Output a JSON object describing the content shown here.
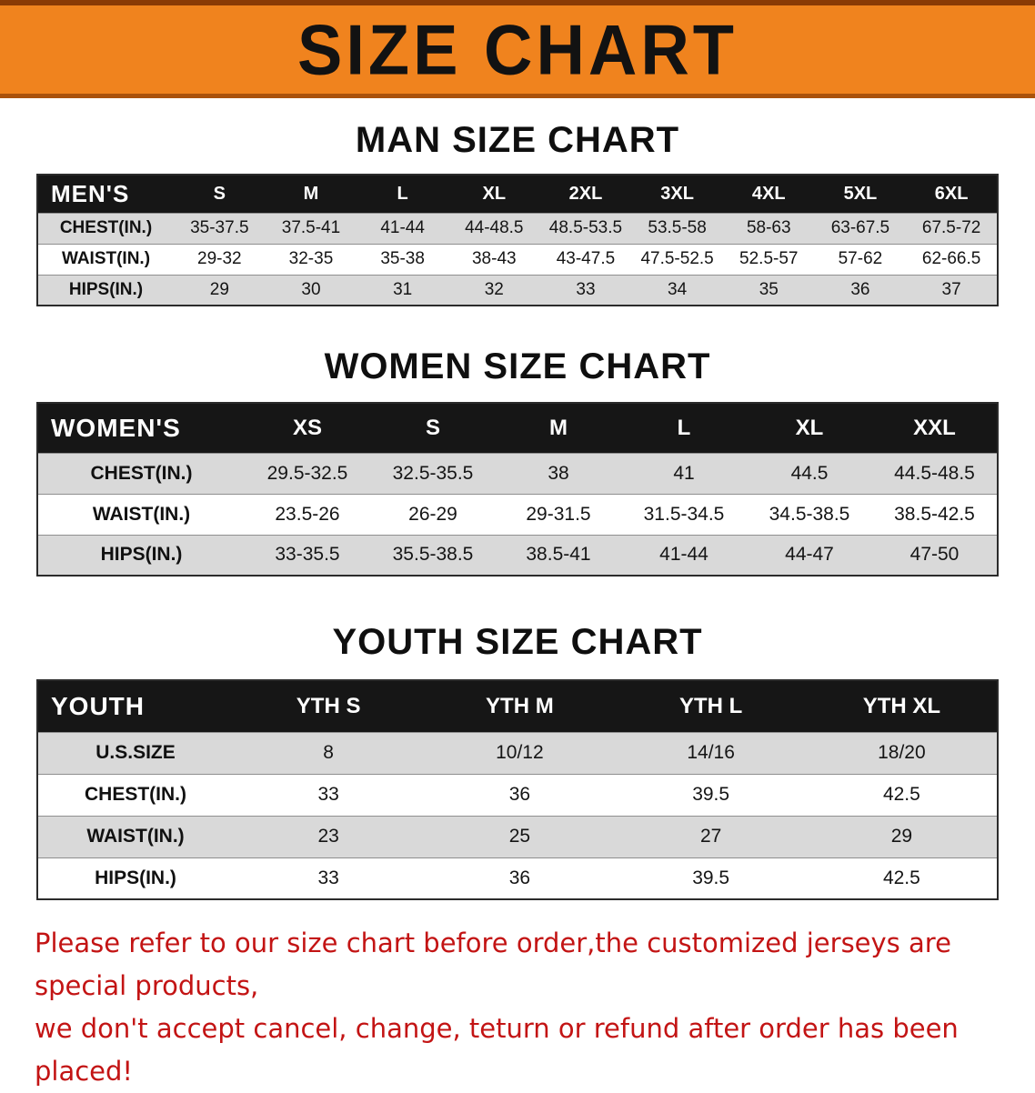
{
  "banner": {
    "title": "SIZE CHART"
  },
  "colors": {
    "banner_bg": "#f0831e",
    "banner_border_top": "#8a3a05",
    "table_header_bg": "#161616",
    "row_alt_bg": "#d9d9d9",
    "footer_text": "#c31414"
  },
  "sections": [
    {
      "heading": "MAN SIZE CHART",
      "table": {
        "name": "mens",
        "header_label": "MEN'S",
        "columns": [
          "S",
          "M",
          "L",
          "XL",
          "2XL",
          "3XL",
          "4XL",
          "5XL",
          "6XL"
        ],
        "rows": [
          {
            "label": "CHEST(IN.)",
            "values": [
              "35-37.5",
              "37.5-41",
              "41-44",
              "44-48.5",
              "48.5-53.5",
              "53.5-58",
              "58-63",
              "63-67.5",
              "67.5-72"
            ]
          },
          {
            "label": "WAIST(IN.)",
            "values": [
              "29-32",
              "32-35",
              "35-38",
              "38-43",
              "43-47.5",
              "47.5-52.5",
              "52.5-57",
              "57-62",
              "62-66.5"
            ]
          },
          {
            "label": "HIPS(IN.)",
            "values": [
              "29",
              "30",
              "31",
              "32",
              "33",
              "34",
              "35",
              "36",
              "37"
            ]
          }
        ]
      }
    },
    {
      "heading": "WOMEN SIZE CHART",
      "table": {
        "name": "womens",
        "header_label": "WOMEN'S",
        "columns": [
          "XS",
          "S",
          "M",
          "L",
          "XL",
          "XXL"
        ],
        "rows": [
          {
            "label": "CHEST(IN.)",
            "values": [
              "29.5-32.5",
              "32.5-35.5",
              "38",
              "41",
              "44.5",
              "44.5-48.5"
            ]
          },
          {
            "label": "WAIST(IN.)",
            "values": [
              "23.5-26",
              "26-29",
              "29-31.5",
              "31.5-34.5",
              "34.5-38.5",
              "38.5-42.5"
            ]
          },
          {
            "label": "HIPS(IN.)",
            "values": [
              "33-35.5",
              "35.5-38.5",
              "38.5-41",
              "41-44",
              "44-47",
              "47-50"
            ]
          }
        ]
      }
    },
    {
      "heading": "YOUTH SIZE CHART",
      "table": {
        "name": "youth",
        "header_label": "YOUTH",
        "columns": [
          "YTH S",
          "YTH M",
          "YTH L",
          "YTH XL"
        ],
        "rows": [
          {
            "label": "U.S.SIZE",
            "values": [
              "8",
              "10/12",
              "14/16",
              "18/20"
            ]
          },
          {
            "label": "CHEST(IN.)",
            "values": [
              "33",
              "36",
              "39.5",
              "42.5"
            ]
          },
          {
            "label": "WAIST(IN.)",
            "values": [
              "23",
              "25",
              "27",
              "29"
            ]
          },
          {
            "label": "HIPS(IN.)",
            "values": [
              "33",
              "36",
              "39.5",
              "42.5"
            ]
          }
        ]
      }
    }
  ],
  "footer": {
    "line1": "Please refer to our size chart before order,the customized jerseys are special products,",
    "line2": "we don't accept cancel, change, teturn or refund after order has been placed!"
  }
}
